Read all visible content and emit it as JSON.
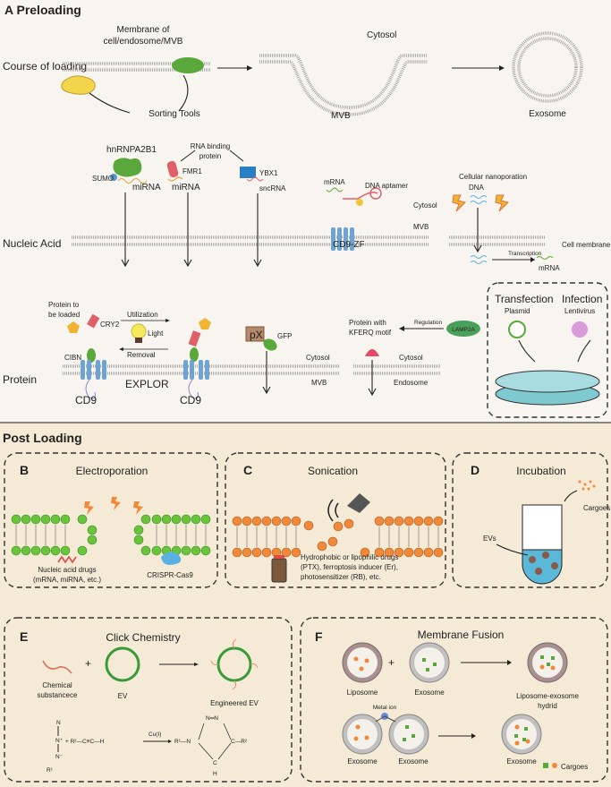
{
  "preloading": {
    "title": "A  Preloading",
    "course": {
      "label": "Course of loading",
      "membrane_label": [
        "Membrane of",
        "cell/endosome/MVB"
      ],
      "sorting_tools": "Sorting Tools",
      "cytosol": "Cytosol",
      "mvb": "MVB",
      "exosome": "Exosome"
    },
    "nucleic": {
      "label": "Nucleic Acid",
      "hnrnpa2b1": "hnRNPA2B1",
      "sumo": "SUMO",
      "mirna1": "miRNA",
      "rbp": [
        "RNA binding",
        "protein"
      ],
      "fmr1": "FMR1",
      "mirna2": "miRNA",
      "ybx1": "YBX1",
      "sncrna": "sncRNA",
      "mrna": "mRNA",
      "dna_aptamer": "DNA aptamer",
      "cytosol": "Cytosol",
      "mvb": "MVB",
      "cd9zf": "CD9-ZF",
      "nanoporation": "Cellular nanoporation",
      "dna": "DNA",
      "cell_membrane": "Cell membrane",
      "transcription": "Transcription",
      "mrna2": "mRNA"
    },
    "protein": {
      "label": "Protein",
      "to_be_loaded": [
        "Protein to",
        "be loaded"
      ],
      "cry2": "CRY2",
      "utilization": "Utilization",
      "light": "Light",
      "removal": "Removal",
      "cibn": "CIBN",
      "cd9a": "CD9",
      "explor": "EXPLOR",
      "cd9b": "CD9",
      "px": "pX",
      "gfp": "GFP",
      "cytosol1": "Cytosol",
      "mvb": "MVB",
      "kferq": [
        "Protein with",
        "KFERQ motif"
      ],
      "regulation": "Regulation",
      "lamp2a": "LAMP2A",
      "cytosol2": "Cytosol",
      "endosome": "Endosome",
      "transfection": "Transfection",
      "infection": "Infection",
      "plasmid": "Plasmid",
      "lentivirus": "Lentivirus"
    }
  },
  "post": {
    "title": "Post Loading",
    "B": {
      "letter": "B",
      "title": "Electroporation",
      "nucleic": [
        "Nucleic acid drugs",
        "(mRNA, miRNA, etc.)"
      ],
      "crispr": "CRISPR-Cas9"
    },
    "C": {
      "letter": "C",
      "title": "Sonication",
      "drugs": [
        "Hydrophobic or lipophilic drugs",
        "(PTX), ferroptosis inducer (Er),",
        "photosensitizer (RB), etc."
      ]
    },
    "D": {
      "letter": "D",
      "title": "Incubation",
      "cargoes": "Cargoes",
      "evs": "EVs"
    },
    "E": {
      "letter": "E",
      "title": "Click Chemistry",
      "chemical": [
        "Chemical",
        "substancece"
      ],
      "plus": "+",
      "ev": "EV",
      "engineered": "Engineered EV",
      "formula": {
        "n_top": "N",
        "n_plus": "N⁺",
        "n_minus": "N⁻",
        "r1a": "R¹",
        "alkyne": "+ R²—C≡C—H",
        "catalyst": "Cu(I)",
        "r1n": "R¹—N",
        "nn": "N═N",
        "cr2": "C—R²",
        "c": "C",
        "h": "H"
      }
    },
    "F": {
      "letter": "F",
      "title": "Membrane Fusion",
      "liposome": "Liposome",
      "plus": "+",
      "exosome1": "Exosome",
      "hybrid": [
        "Liposome-exosome",
        "hydrid"
      ],
      "metal_ion": "Metal ion",
      "exosome2": "Exosome",
      "exosome3": "Exosome",
      "exosome4": "Exosome",
      "cargoes": "Cargoes"
    }
  },
  "colors": {
    "green": "#5aa83c",
    "orange": "#e8823a",
    "blue": "#4a8ac4",
    "red": "#e0606a",
    "beige": "#f4ead6"
  }
}
